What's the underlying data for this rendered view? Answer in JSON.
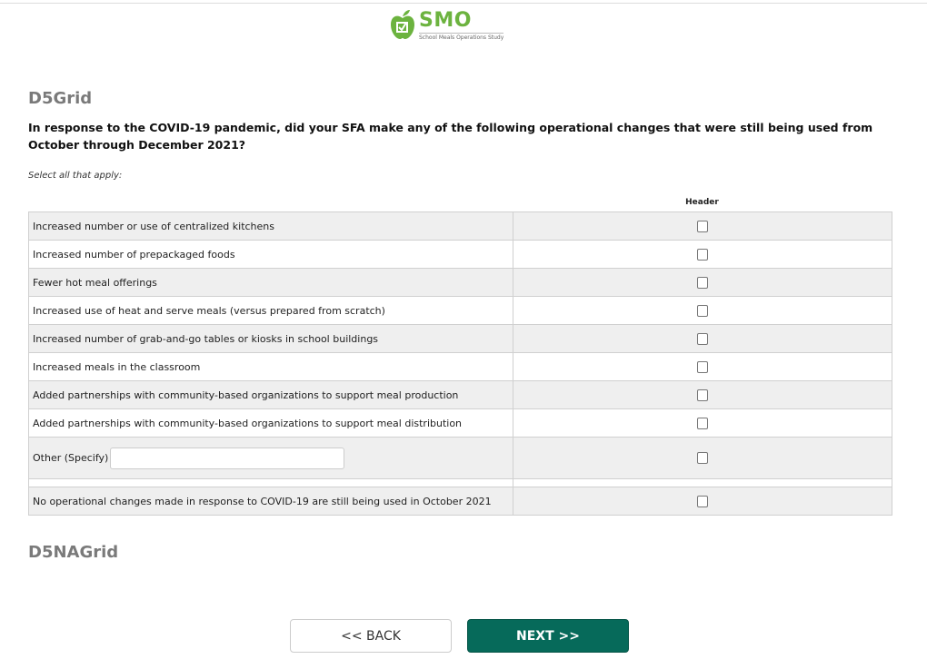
{
  "logo": {
    "name": "SMO",
    "subtitle": "School Meals Operations Study",
    "color": "#6cb33f"
  },
  "section_title": "D5Grid",
  "question": "In response to the COVID-19 pandemic, did your SFA make any of the following operational changes that were still being used from October through December 2021?",
  "hint": "Select all that apply:",
  "column_header": "Header",
  "rows": [
    {
      "label": "Increased number or use of centralized kitchens",
      "checked": false
    },
    {
      "label": "Increased number of prepackaged foods",
      "checked": false
    },
    {
      "label": "Fewer hot meal offerings",
      "checked": false
    },
    {
      "label": "Increased use of heat and serve meals (versus prepared from scratch)",
      "checked": false
    },
    {
      "label": "Increased number of grab-and-go tables or kiosks in school buildings",
      "checked": false
    },
    {
      "label": "Increased meals in the classroom",
      "checked": false
    },
    {
      "label": "Added partnerships with community-based organizations to support meal production",
      "checked": false
    },
    {
      "label": "Added partnerships with community-based organizations to support meal distribution",
      "checked": false
    }
  ],
  "other": {
    "label": "Other (Specify)",
    "value": "",
    "checked": false
  },
  "none": {
    "label": "No operational changes made in response to COVID-19 are still being used in October 2021",
    "checked": false
  },
  "section_title2": "D5NAGrid",
  "buttons": {
    "back": "<< BACK",
    "next": "NEXT >>",
    "next_color": "#066a5a"
  }
}
